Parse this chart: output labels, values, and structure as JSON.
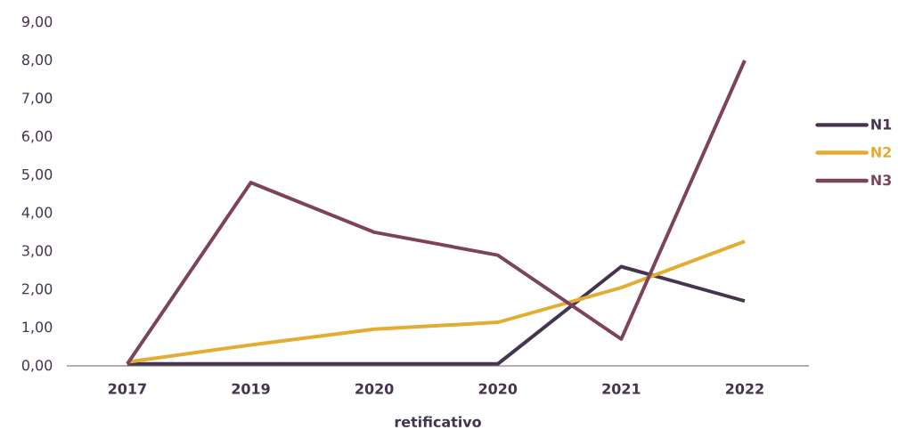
{
  "chart_data": {
    "type": "line",
    "xlabel": "retificativo",
    "categories": [
      "2017",
      "2019",
      "2020",
      "2020",
      "2021",
      "2022"
    ],
    "series": [
      {
        "name": "N1",
        "color": "#45344f",
        "values": [
          0.05,
          0.05,
          0.05,
          0.05,
          2.6,
          1.7
        ]
      },
      {
        "name": "N2",
        "color": "#e3ac32",
        "values": [
          0.1,
          0.55,
          0.96,
          1.14,
          2.05,
          3.26
        ]
      },
      {
        "name": "N3",
        "color": "#7d4459",
        "values": [
          0.05,
          4.8,
          3.5,
          2.9,
          0.7,
          8.0
        ]
      }
    ],
    "ylim": [
      0,
      9
    ],
    "yticks": [
      {
        "value": 0,
        "label": "0,00"
      },
      {
        "value": 1,
        "label": "1,00"
      },
      {
        "value": 2,
        "label": "2,00"
      },
      {
        "value": 3,
        "label": "3,00"
      },
      {
        "value": 4,
        "label": "4,00"
      },
      {
        "value": 5,
        "label": "5,00"
      },
      {
        "value": 6,
        "label": "6,00"
      },
      {
        "value": 7,
        "label": "7,00"
      },
      {
        "value": 8,
        "label": "8,00"
      },
      {
        "value": 9,
        "label": "9,00"
      }
    ],
    "grid": false,
    "legend": "right",
    "marker": "none",
    "line_style": "solid"
  }
}
